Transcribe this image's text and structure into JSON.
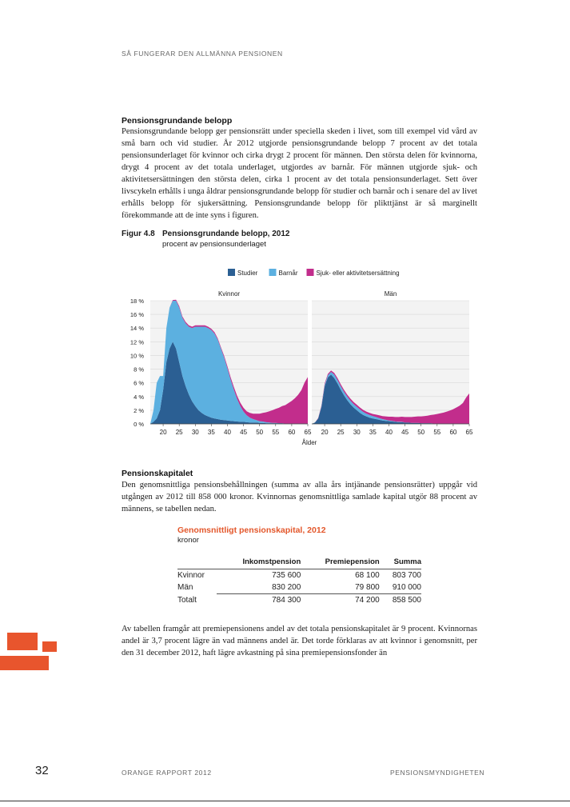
{
  "header": {
    "running_title": "SÅ FUNGERAR DEN ALLMÄNNA PENSIONEN"
  },
  "section1": {
    "heading": "Pensionsgrundande belopp",
    "body": "Pensionsgrundande belopp ger pensionsrätt under speciella skeden i livet, som till exempel vid vård av små barn och vid studier. År 2012 utgjorde pensionsgrundande belopp 7 procent av det totala pensionsunderlaget för kvinnor och cirka drygt 2 procent för männen. Den största delen för kvinnorna, drygt 4 procent av det totala underlaget, utgjordes av barnår. För männen utgjorde sjuk- och aktivitetsersättningen den största delen, cirka 1 procent av det totala pensionsunderlaget. Sett över livscykeln erhålls i unga åldrar pensionsgrundande belopp för studier och barnår och i senare del av livet erhålls belopp för sjukersättning. Pensionsgrundande belopp för plikttjänst är så marginellt förekommande att de inte syns i figuren."
  },
  "figure": {
    "label": "Figur 4.8",
    "title": "Pensionsgrundande belopp, 2012",
    "subtitle": "procent av pensionsunderlaget"
  },
  "chart_data": {
    "type": "area",
    "stacked": true,
    "legend": [
      {
        "name": "Studier",
        "color": "#2b5f93"
      },
      {
        "name": "Barnår",
        "color": "#5cb0e0"
      },
      {
        "name": "Sjuk- eller aktivitetsersättning",
        "color": "#c22d8c"
      }
    ],
    "legend_position": "top",
    "xlabel": "Ålder",
    "ylim": [
      0,
      18
    ],
    "y_ticks": [
      "0 %",
      "2 %",
      "4 %",
      "6 %",
      "8 %",
      "10 %",
      "12 %",
      "14 %",
      "16 %",
      "18 %"
    ],
    "x_ticks": [
      20,
      25,
      30,
      35,
      40,
      45,
      50,
      55,
      60,
      65
    ],
    "grid": true,
    "panels": [
      {
        "name": "Kvinnor",
        "ages": [
          16,
          17,
          18,
          19,
          20,
          21,
          22,
          23,
          24,
          25,
          26,
          27,
          28,
          29,
          30,
          31,
          32,
          33,
          34,
          35,
          36,
          37,
          38,
          39,
          40,
          41,
          42,
          43,
          44,
          45,
          46,
          47,
          48,
          49,
          50,
          51,
          52,
          53,
          54,
          55,
          56,
          57,
          58,
          59,
          60,
          61,
          62,
          63,
          64,
          65
        ],
        "series": [
          {
            "name": "Studier",
            "values": [
              0,
              0.3,
              0.8,
              2,
              5,
              9,
              11,
              12,
              11,
              9,
              7,
              5.5,
              4.3,
              3.3,
              2.6,
              2,
              1.6,
              1.3,
              1.1,
              0.9,
              0.8,
              0.7,
              0.6,
              0.55,
              0.5,
              0.45,
              0.4,
              0.35,
              0.3,
              0.3,
              0.25,
              0.2,
              0.2,
              0.2,
              0.15,
              0.15,
              0.1,
              0.1,
              0.1,
              0.1,
              0.1,
              0.1,
              0.05,
              0.05,
              0.05,
              0.05,
              0.05,
              0.05,
              0.05,
              0.05
            ]
          },
          {
            "name": "Barnår",
            "values": [
              0,
              1.7,
              5.2,
              5,
              2,
              5,
              6,
              6,
              7,
              8,
              8.5,
              9.2,
              9.9,
              10.7,
              11.6,
              12.2,
              12.6,
              12.9,
              12.9,
              12.8,
              12.4,
              11.6,
              10.4,
              9.1,
              7.6,
              6,
              4.6,
              3.3,
              2.3,
              1.5,
              1,
              0.7,
              0.5,
              0.35,
              0.25,
              0.2,
              0.15,
              0.1,
              0.05,
              0.05,
              0,
              0,
              0,
              0,
              0,
              0,
              0,
              0,
              0,
              0
            ]
          },
          {
            "name": "Sjuk- eller aktivitetsersättning",
            "values": [
              0,
              0,
              0,
              0,
              0,
              0,
              0,
              0.1,
              0.15,
              0.2,
              0.2,
              0.2,
              0.2,
              0.2,
              0.2,
              0.2,
              0.2,
              0.2,
              0.2,
              0.2,
              0.2,
              0.2,
              0.2,
              0.25,
              0.3,
              0.35,
              0.4,
              0.45,
              0.5,
              0.55,
              0.6,
              0.7,
              0.8,
              0.95,
              1.1,
              1.25,
              1.45,
              1.65,
              1.85,
              2.05,
              2.25,
              2.5,
              2.7,
              3,
              3.3,
              3.7,
              4.2,
              4.9,
              6,
              6.8
            ]
          }
        ]
      },
      {
        "name": "Män",
        "ages": [
          16,
          17,
          18,
          19,
          20,
          21,
          22,
          23,
          24,
          25,
          26,
          27,
          28,
          29,
          30,
          31,
          32,
          33,
          34,
          35,
          36,
          37,
          38,
          39,
          40,
          41,
          42,
          43,
          44,
          45,
          46,
          47,
          48,
          49,
          50,
          51,
          52,
          53,
          54,
          55,
          56,
          57,
          58,
          59,
          60,
          61,
          62,
          63,
          64,
          65
        ],
        "series": [
          {
            "name": "Studier",
            "values": [
              0,
              0.2,
              0.8,
              2.5,
              5.5,
              6.8,
              7.2,
              6.7,
              5.9,
              5,
              4.2,
              3.5,
              2.9,
              2.4,
              2,
              1.6,
              1.3,
              1.1,
              0.9,
              0.8,
              0.7,
              0.6,
              0.5,
              0.45,
              0.4,
              0.35,
              0.3,
              0.25,
              0.25,
              0.2,
              0.2,
              0.15,
              0.15,
              0.15,
              0.1,
              0.1,
              0.1,
              0.1,
              0.05,
              0.05,
              0.05,
              0.05,
              0.05,
              0.05,
              0.05,
              0.05,
              0.05,
              0.05,
              0.05,
              0.05
            ]
          },
          {
            "name": "Barnår",
            "values": [
              0,
              0,
              0,
              0.1,
              0.2,
              0.3,
              0.4,
              0.5,
              0.5,
              0.5,
              0.5,
              0.5,
              0.5,
              0.5,
              0.5,
              0.5,
              0.45,
              0.4,
              0.4,
              0.35,
              0.3,
              0.25,
              0.2,
              0.15,
              0.1,
              0.1,
              0.05,
              0.05,
              0.05,
              0,
              0,
              0,
              0,
              0,
              0,
              0,
              0,
              0,
              0,
              0,
              0,
              0,
              0,
              0,
              0,
              0,
              0,
              0,
              0,
              0
            ]
          },
          {
            "name": "Sjuk- eller aktivitetsersättning",
            "values": [
              0,
              0,
              0.05,
              0.1,
              0.2,
              0.2,
              0.2,
              0.25,
              0.3,
              0.3,
              0.3,
              0.3,
              0.3,
              0.3,
              0.3,
              0.3,
              0.3,
              0.3,
              0.3,
              0.3,
              0.35,
              0.4,
              0.45,
              0.5,
              0.55,
              0.6,
              0.65,
              0.7,
              0.75,
              0.8,
              0.8,
              0.85,
              0.9,
              0.95,
              1,
              1.05,
              1.1,
              1.2,
              1.3,
              1.4,
              1.5,
              1.6,
              1.75,
              1.9,
              2.1,
              2.35,
              2.6,
              3,
              3.8,
              4.4
            ]
          }
        ]
      }
    ]
  },
  "section2": {
    "heading": "Pensionskapitalet",
    "body": "Den genomsnittliga pensionsbehållningen (summa av alla års intjänande pensionsrätter) uppgår vid utgången av 2012 till 858 000 kronor. Kvinnornas genomsnittliga samlade kapital utgör 88 procent av männens, se tabellen nedan."
  },
  "table": {
    "title": "Genomsnittligt pensionskapital, 2012",
    "unit": "kronor",
    "columns": [
      "Inkomstpension",
      "Premiepension",
      "Summa"
    ],
    "rows": [
      {
        "label": "Kvinnor",
        "values": [
          "735 600",
          "68 100",
          "803 700"
        ]
      },
      {
        "label": "Män",
        "values": [
          "830 200",
          "79 800",
          "910 000"
        ]
      },
      {
        "label": "Totalt",
        "values": [
          "784 300",
          "74 200",
          "858 500"
        ]
      }
    ]
  },
  "section3": {
    "body": "Av tabellen framgår att premiepensionens andel av det totala pensionskapitalet är 9 procent. Kvinnornas andel är 3,7 procent lägre än vad männens andel är. Det torde förklaras av att kvinnor i genomsnitt, per den 31 december 2012, haft lägre avkastning på sina premiepensionsfonder än"
  },
  "footer": {
    "page_number": "32",
    "left": "ORANGE RAPPORT 2012",
    "right": "PENSIONSMYNDIGHETEN"
  }
}
